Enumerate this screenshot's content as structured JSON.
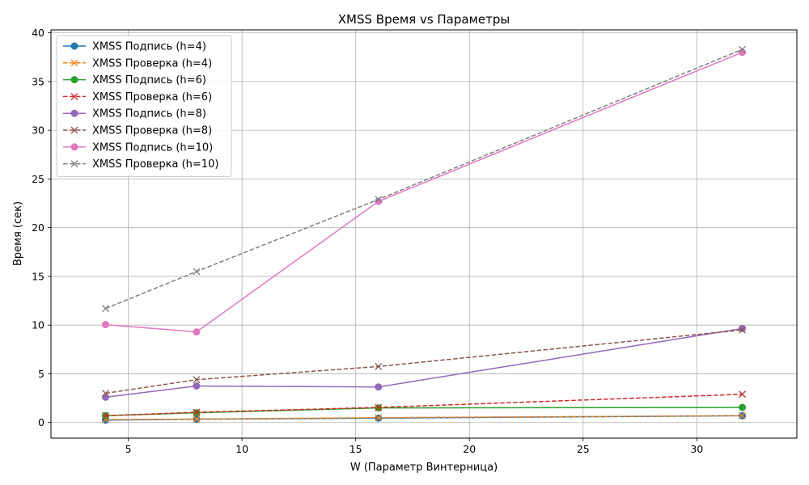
{
  "chart_data": {
    "type": "line",
    "title": "XMSS Время vs Параметры",
    "xlabel": "W (Параметр Винтерница)",
    "ylabel": "Время (сек)",
    "x": [
      4,
      8,
      16,
      32
    ],
    "xlim": [
      1.6,
      34.4
    ],
    "ylim": [
      -1.6,
      40.3
    ],
    "xticks": [
      5,
      10,
      15,
      20,
      25,
      30
    ],
    "yticks": [
      0,
      5,
      10,
      15,
      20,
      25,
      30,
      35,
      40
    ],
    "grid": true,
    "legend_position": "top-left",
    "series": [
      {
        "name": "XMSS Подпись (h=4)",
        "color": "#1f77b4",
        "dash": "solid",
        "marker": "circle",
        "values": [
          0.25,
          0.35,
          0.45,
          0.7
        ]
      },
      {
        "name": "XMSS Проверка (h=4)",
        "color": "#ff7f0e",
        "dash": "dashed",
        "marker": "x",
        "values": [
          0.3,
          0.35,
          0.5,
          0.7
        ]
      },
      {
        "name": "XMSS Подпись (h=6)",
        "color": "#2ca02c",
        "dash": "solid",
        "marker": "circle",
        "values": [
          0.7,
          1.0,
          1.5,
          1.55
        ]
      },
      {
        "name": "XMSS Проверка (h=6)",
        "color": "#d62728",
        "dash": "dashed",
        "marker": "x",
        "values": [
          0.7,
          1.05,
          1.55,
          2.9
        ]
      },
      {
        "name": "XMSS Подпись (h=8)",
        "color": "#9467bd",
        "dash": "solid",
        "marker": "circle",
        "values": [
          2.6,
          3.75,
          3.65,
          9.65
        ]
      },
      {
        "name": "XMSS Проверка (h=8)",
        "color": "#8c564b",
        "dash": "dashed",
        "marker": "x",
        "values": [
          3.0,
          4.4,
          5.75,
          9.5
        ]
      },
      {
        "name": "XMSS Подпись (h=10)",
        "color": "#e377c2",
        "dash": "solid",
        "marker": "circle",
        "values": [
          10.05,
          9.3,
          22.7,
          38.0
        ]
      },
      {
        "name": "XMSS Проверка (h=10)",
        "color": "#7f7f7f",
        "dash": "dashed",
        "marker": "x",
        "values": [
          11.7,
          15.5,
          22.9,
          38.3
        ]
      }
    ]
  }
}
